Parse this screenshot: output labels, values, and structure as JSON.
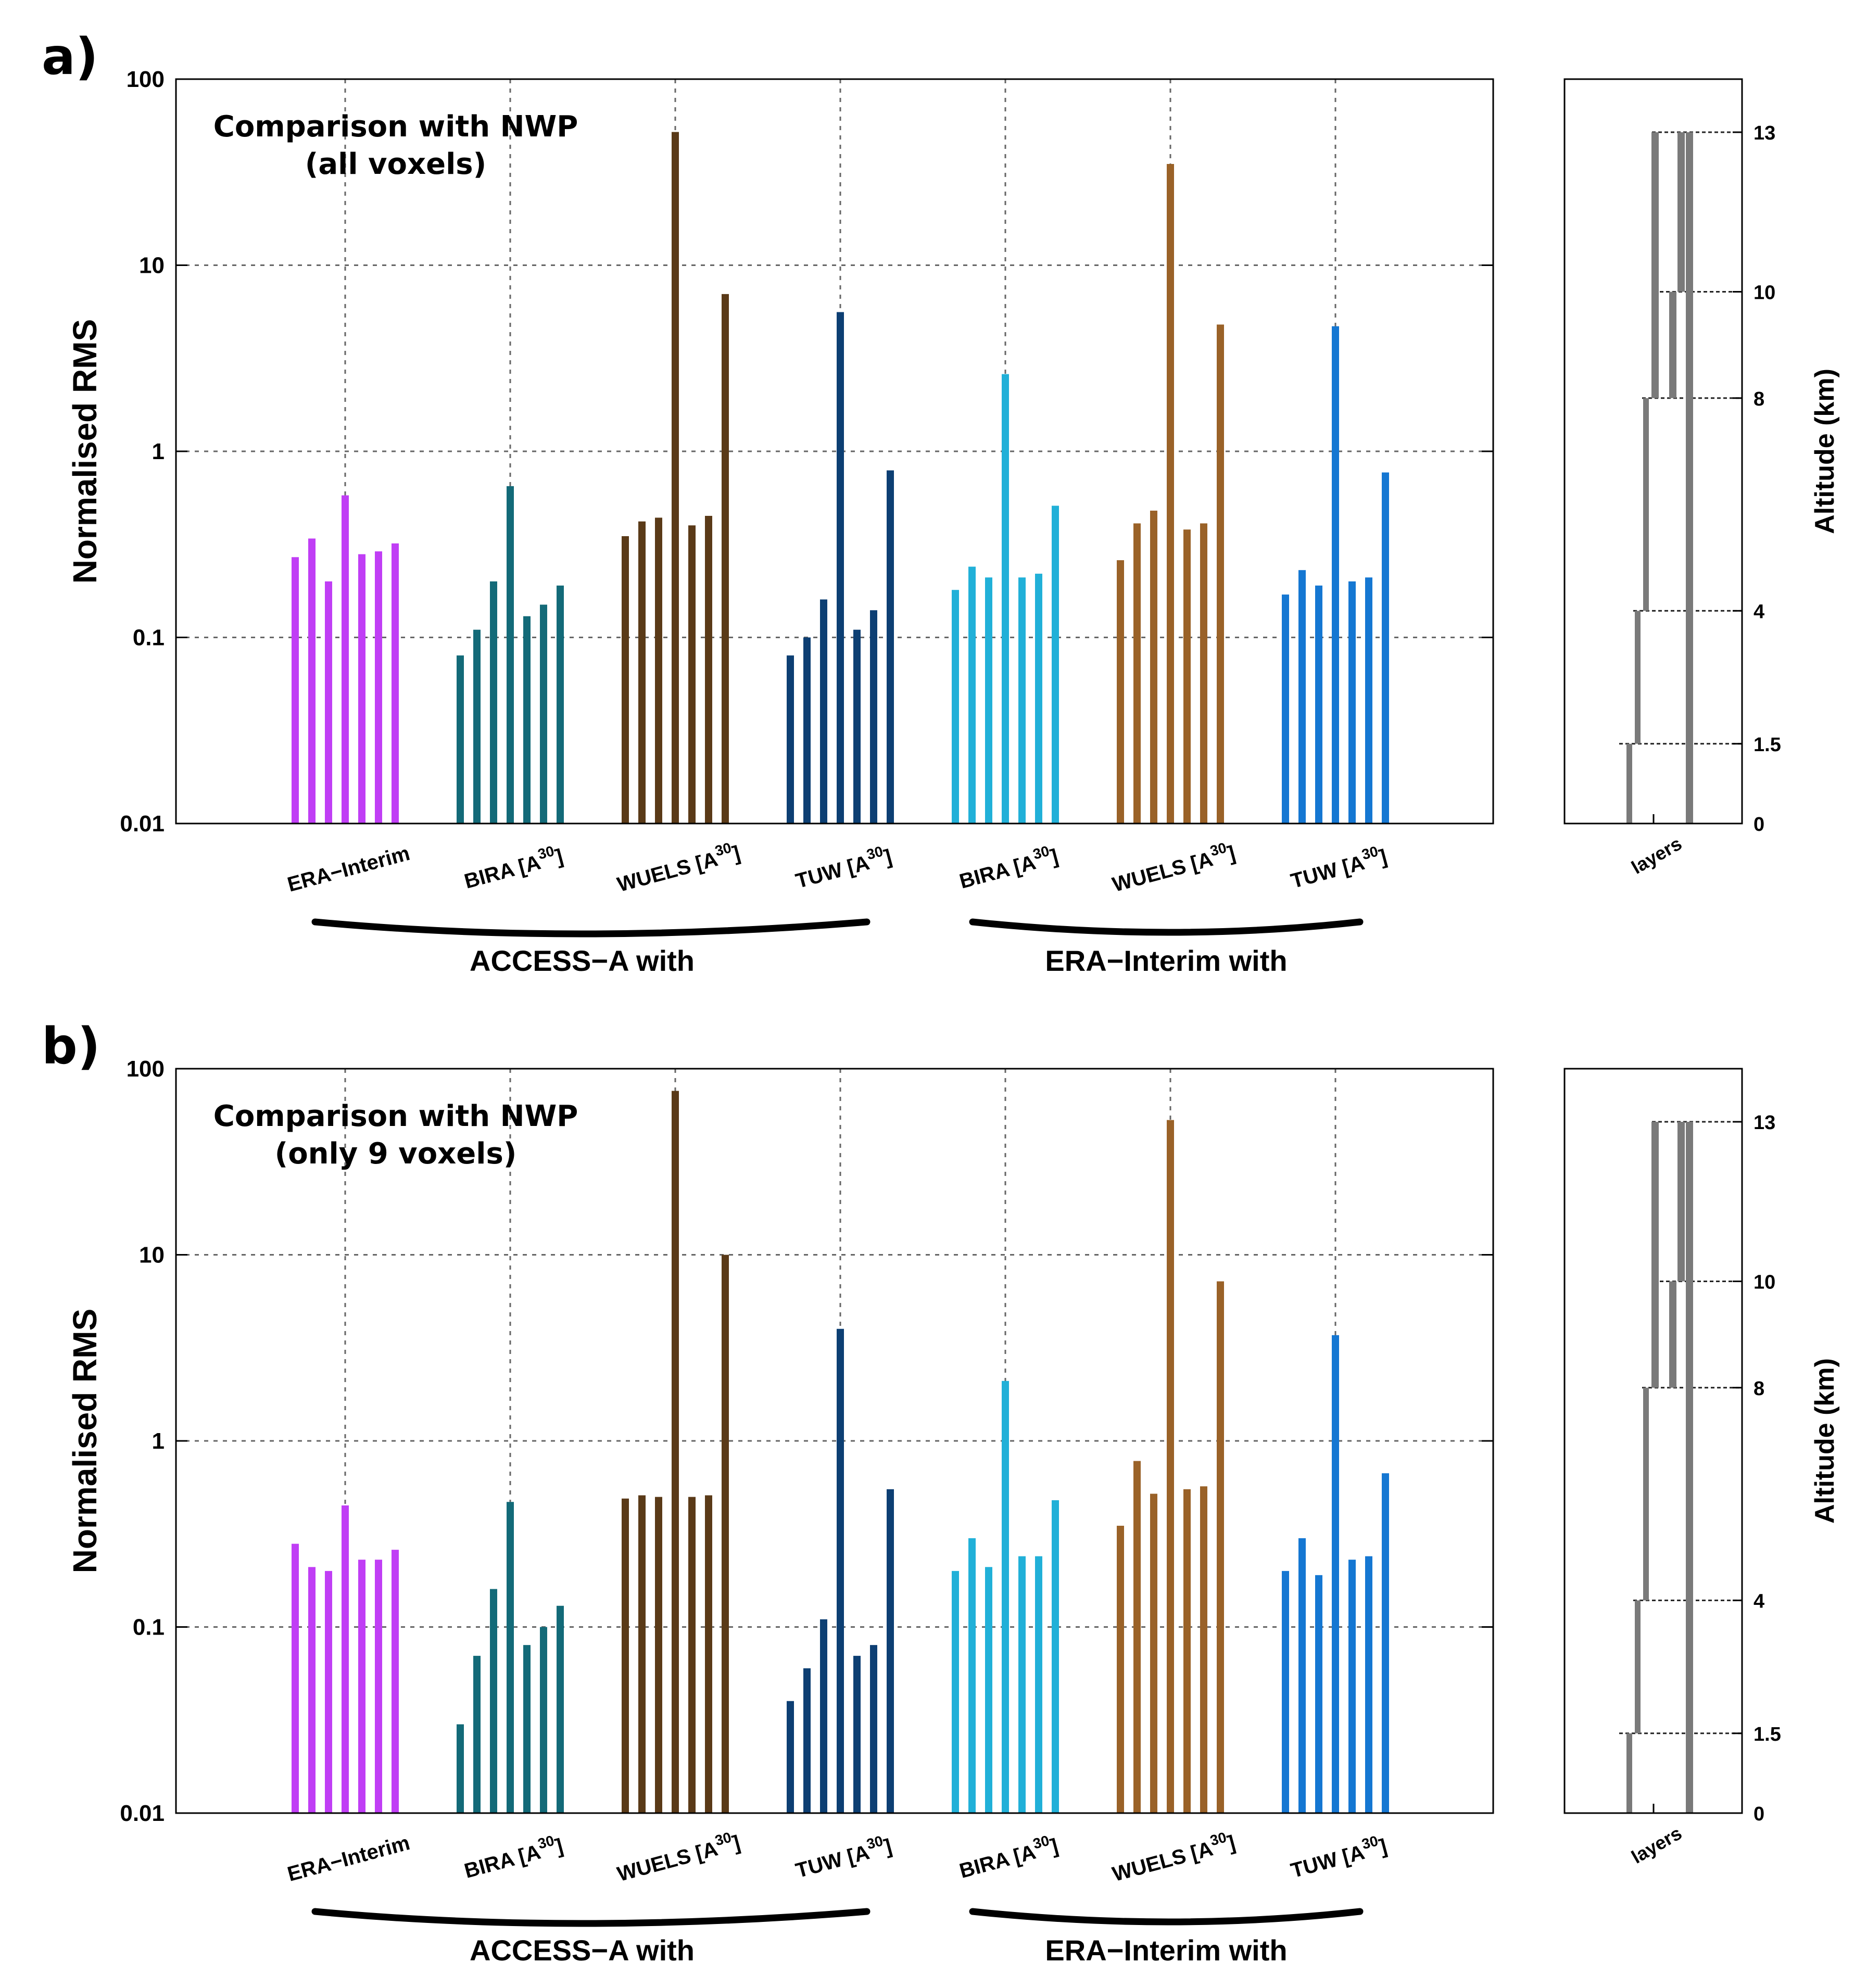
{
  "chart_data": [
    {
      "type": "bar",
      "panel": "a)",
      "title_line1": "Comparison with NWP",
      "title_line2": "(all voxels)",
      "ylabel": "Normalised RMS",
      "yscale": "log",
      "ylim": [
        0.01,
        100
      ],
      "yticks": [
        "0.01",
        "0.1",
        "1",
        "10",
        "100"
      ],
      "grid": true,
      "groups": [
        {
          "name": "ERA−Interim",
          "base": "",
          "sup": "",
          "color": "#c03ef5",
          "values": [
            0.27,
            0.34,
            0.2,
            0.58,
            0.28,
            0.29,
            0.32
          ]
        },
        {
          "name": "BIRA [A",
          "base": "BIRA [A",
          "sup": "30",
          "color": "#136a78",
          "values": [
            0.08,
            0.11,
            0.2,
            0.65,
            0.13,
            0.15,
            0.19
          ]
        },
        {
          "name": "WUELS [A",
          "base": "WUELS [A",
          "sup": "30",
          "color": "#5a3a18",
          "values": [
            0.35,
            0.42,
            0.44,
            52,
            0.4,
            0.45,
            7.0
          ]
        },
        {
          "name": "TUW [A",
          "base": "TUW [A",
          "sup": "30",
          "color": "#0d3f73",
          "values": [
            0.08,
            0.1,
            0.16,
            5.6,
            0.11,
            0.14,
            0.79
          ]
        },
        {
          "name": "BIRA [A",
          "base": "BIRA [A",
          "sup": "30",
          "color": "#21b0d8",
          "values": [
            0.18,
            0.24,
            0.21,
            2.6,
            0.21,
            0.22,
            0.51
          ]
        },
        {
          "name": "WUELS [A",
          "base": "WUELS [A",
          "sup": "30",
          "color": "#9a6228",
          "values": [
            0.26,
            0.41,
            0.48,
            35,
            0.38,
            0.41,
            4.8
          ]
        },
        {
          "name": "TUW [A",
          "base": "TUW [A",
          "sup": "30",
          "color": "#1577d2",
          "values": [
            0.17,
            0.23,
            0.19,
            4.7,
            0.2,
            0.21,
            0.77
          ]
        }
      ],
      "bracket_labels": [
        "ACCESS−A with",
        "ERA−Interim with"
      ],
      "inset": {
        "ylabel": "Altitude (km)",
        "xlabel": "layers",
        "ylim": [
          0,
          14
        ],
        "ticks": [
          "0",
          "1.5",
          "4",
          "8",
          "10",
          "13"
        ],
        "layers": [
          [
            0,
            1.5
          ],
          [
            1.5,
            4
          ],
          [
            4,
            8
          ],
          [
            8,
            13
          ],
          [
            8,
            10
          ],
          [
            10,
            13
          ],
          [
            0,
            13
          ]
        ]
      }
    },
    {
      "type": "bar",
      "panel": "b)",
      "title_line1": "Comparison with NWP",
      "title_line2": "(only 9 voxels)",
      "ylabel": "Normalised RMS",
      "yscale": "log",
      "ylim": [
        0.01,
        100
      ],
      "yticks": [
        "0.01",
        "0.1",
        "1",
        "10",
        "100"
      ],
      "grid": true,
      "groups": [
        {
          "name": "ERA−Interim",
          "base": "",
          "sup": "",
          "color": "#c03ef5",
          "values": [
            0.28,
            0.21,
            0.2,
            0.45,
            0.23,
            0.23,
            0.26
          ]
        },
        {
          "name": "BIRA [A",
          "base": "BIRA [A",
          "sup": "30",
          "color": "#136a78",
          "values": [
            0.03,
            0.07,
            0.16,
            0.47,
            0.08,
            0.1,
            0.13
          ]
        },
        {
          "name": "WUELS [A",
          "base": "WUELS [A",
          "sup": "30",
          "color": "#5a3a18",
          "values": [
            0.49,
            0.51,
            0.5,
            76,
            0.5,
            0.51,
            10
          ]
        },
        {
          "name": "TUW [A",
          "base": "TUW [A",
          "sup": "30",
          "color": "#0d3f73",
          "values": [
            0.04,
            0.06,
            0.11,
            4.0,
            0.07,
            0.08,
            0.55
          ]
        },
        {
          "name": "BIRA [A",
          "base": "BIRA [A",
          "sup": "30",
          "color": "#21b0d8",
          "values": [
            0.2,
            0.3,
            0.21,
            2.1,
            0.24,
            0.24,
            0.48
          ]
        },
        {
          "name": "WUELS [A",
          "base": "WUELS [A",
          "sup": "30",
          "color": "#9a6228",
          "values": [
            0.35,
            0.78,
            0.52,
            53,
            0.55,
            0.57,
            7.2
          ]
        },
        {
          "name": "TUW [A",
          "base": "TUW [A",
          "sup": "30",
          "color": "#1577d2",
          "values": [
            0.2,
            0.3,
            0.19,
            3.7,
            0.23,
            0.24,
            0.67
          ]
        }
      ],
      "bracket_labels": [
        "ACCESS−A with",
        "ERA−Interim with"
      ],
      "inset": {
        "ylabel": "Altitude (km)",
        "xlabel": "layers",
        "ylim": [
          0,
          14
        ],
        "ticks": [
          "0",
          "1.5",
          "4",
          "8",
          "10",
          "13"
        ],
        "layers": [
          [
            0,
            1.5
          ],
          [
            1.5,
            4
          ],
          [
            4,
            8
          ],
          [
            8,
            13
          ],
          [
            8,
            10
          ],
          [
            10,
            13
          ],
          [
            0,
            13
          ]
        ]
      }
    }
  ]
}
